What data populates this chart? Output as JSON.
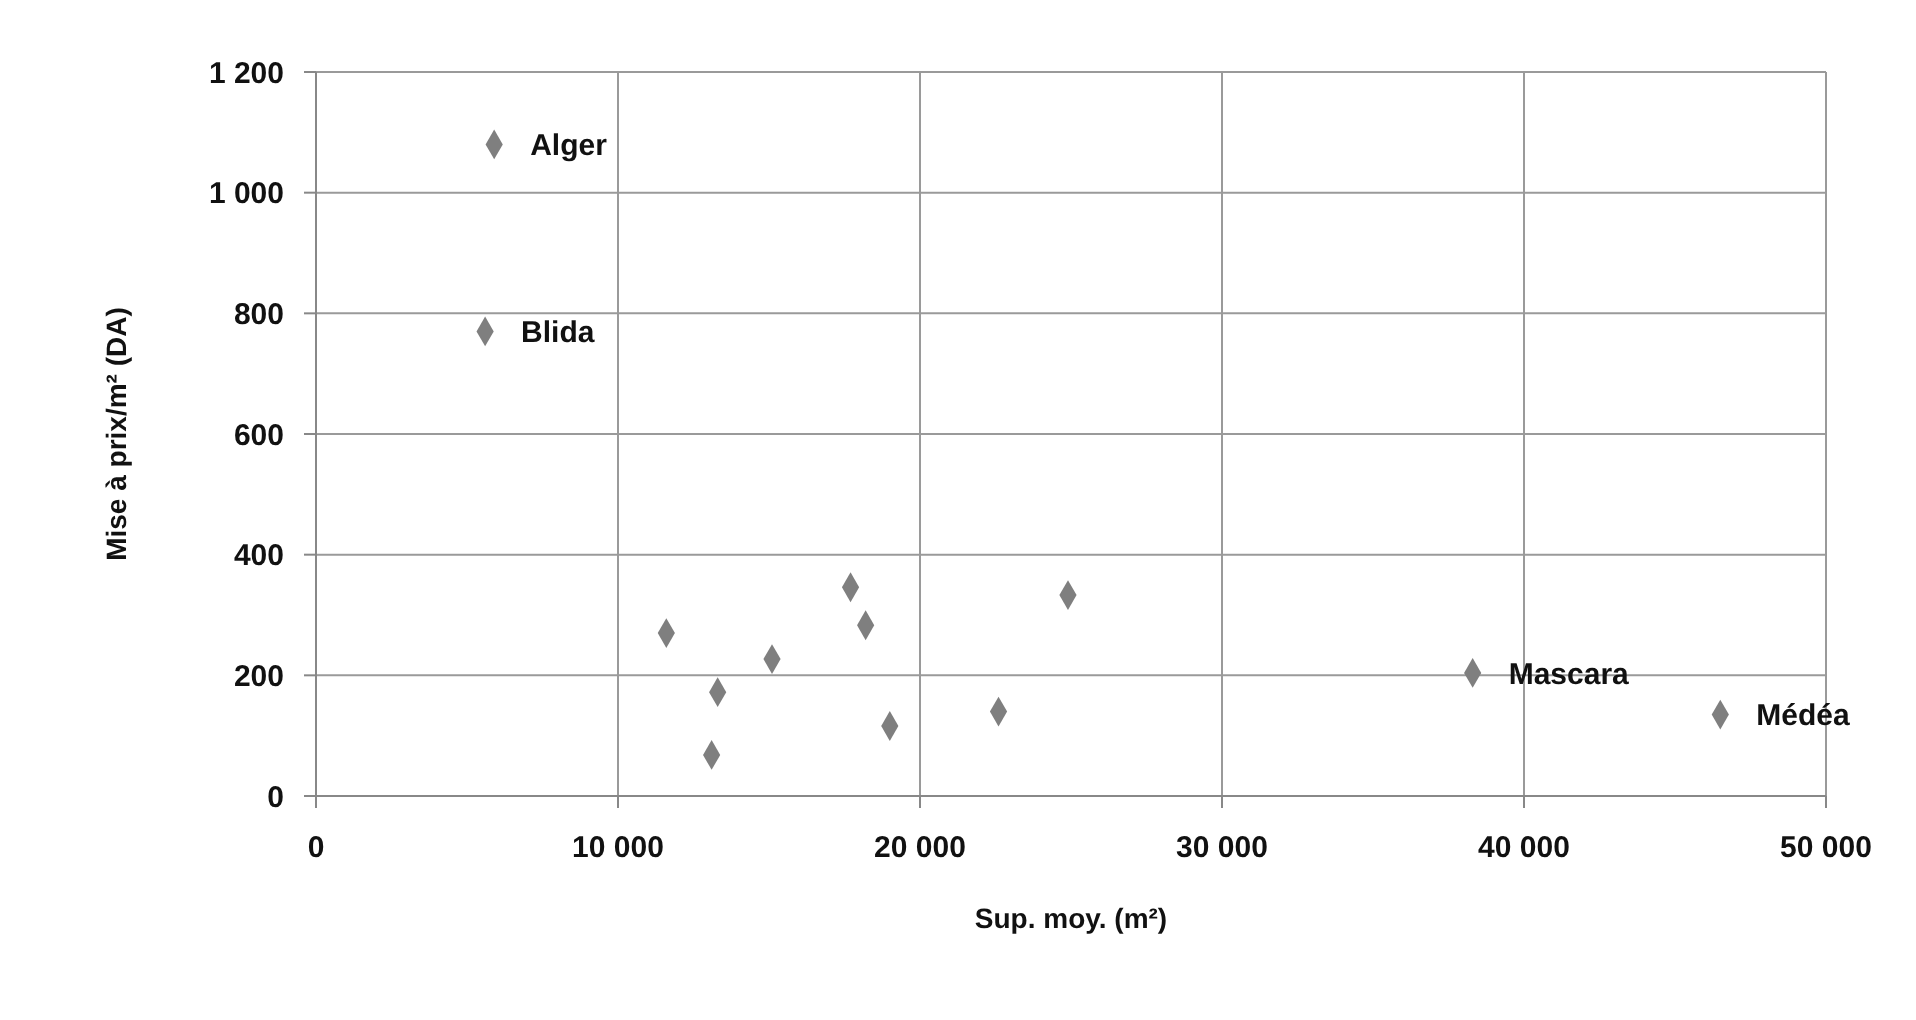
{
  "chart_data": {
    "type": "scatter",
    "xlabel": "Sup. moy. (m²)",
    "ylabel": "Mise à prix/m² (DA)",
    "x": [
      5900,
      5600,
      11600,
      13300,
      13100,
      15100,
      17700,
      18200,
      19000,
      22600,
      24900,
      38300,
      46500
    ],
    "values": [
      1080,
      770,
      270,
      172,
      68,
      227,
      346,
      283,
      116,
      140,
      333,
      204,
      135
    ],
    "color": "#7f7f7f",
    "marker": "diamond",
    "grid": true,
    "legend": false,
    "xlim": [
      0,
      50000
    ],
    "xticks": [
      0,
      {
        "value": 10000,
        "label": "10 000"
      },
      {
        "value": 20000,
        "label": "20 000"
      },
      {
        "value": 30000,
        "label": "30 000"
      },
      {
        "value": 40000,
        "label": "40 000"
      },
      {
        "value": 50000,
        "label": "50 000"
      }
    ],
    "ylim": [
      0,
      1200
    ],
    "yticks": [
      0,
      200,
      400,
      600,
      800,
      {
        "value": 1000,
        "label": "1 000"
      },
      {
        "value": 1200,
        "label": "1 200"
      }
    ],
    "annotations": [
      {
        "text": "Alger",
        "x": 5900,
        "y": 1080
      },
      {
        "text": "Blida",
        "x": 5600,
        "y": 770
      },
      {
        "text": "Mascara",
        "x": 38300,
        "y": 204
      },
      {
        "text": "Médéa",
        "x": 46500,
        "y": 135
      }
    ]
  }
}
